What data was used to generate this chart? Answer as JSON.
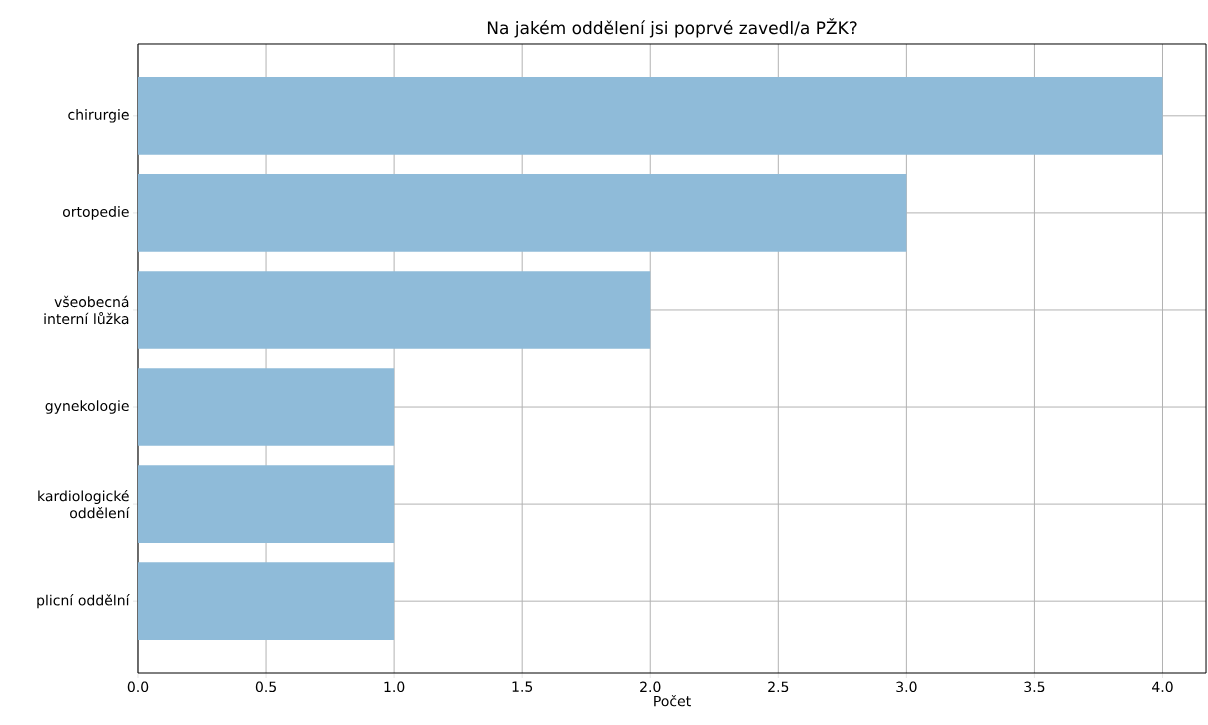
{
  "chart_data": {
    "type": "bar",
    "orientation": "horizontal",
    "title": "Na jakém oddělení jsi poprvé zavedl/a PŽK?",
    "xlabel": "Počet",
    "categories": [
      "chirurgie",
      "ortopedie",
      "všeobecná interní lůžka",
      "gynekologie",
      "kardiologické oddělení",
      "plicní oddělní"
    ],
    "values": [
      4,
      3,
      2,
      1,
      1,
      1
    ],
    "color": "#8fbbd9",
    "xlim": [
      0,
      4.17
    ],
    "xticks": [
      {
        "value": 0,
        "label": "0.0"
      },
      {
        "value": 0.5,
        "label": "0.5"
      },
      {
        "value": 1,
        "label": "1.0"
      },
      {
        "value": 1.5,
        "label": "1.5"
      },
      {
        "value": 2,
        "label": "2.0"
      },
      {
        "value": 2.5,
        "label": "2.5"
      },
      {
        "value": 3,
        "label": "3.0"
      },
      {
        "value": 3.5,
        "label": "3.5"
      },
      {
        "value": 4,
        "label": "4.0"
      }
    ],
    "grid": true
  }
}
